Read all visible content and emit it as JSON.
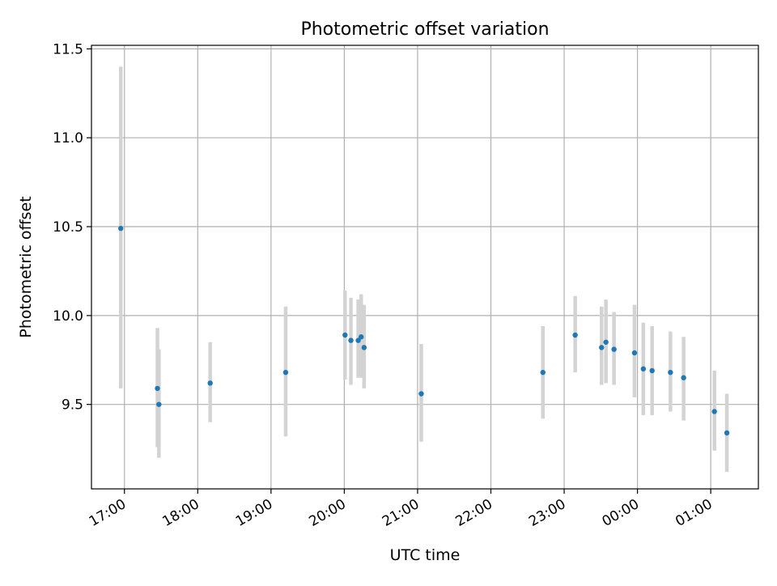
{
  "chart_data": {
    "type": "scatter",
    "title": "Photometric offset variation",
    "xlabel": "UTC time",
    "ylabel": "Photometric offset",
    "x_unit": "hours (UTC, continuing past midnight)",
    "xlim": [
      16.55,
      25.65
    ],
    "ylim": [
      9.025,
      11.52
    ],
    "x_ticks": [
      {
        "value": 17,
        "label": "17:00"
      },
      {
        "value": 18,
        "label": "18:00"
      },
      {
        "value": 19,
        "label": "19:00"
      },
      {
        "value": 20,
        "label": "20:00"
      },
      {
        "value": 21,
        "label": "21:00"
      },
      {
        "value": 22,
        "label": "22:00"
      },
      {
        "value": 23,
        "label": "23:00"
      },
      {
        "value": 24,
        "label": "00:00"
      },
      {
        "value": 25,
        "label": "01:00"
      }
    ],
    "y_ticks": [
      {
        "value": 9.5,
        "label": "9.5"
      },
      {
        "value": 10.0,
        "label": "10.0"
      },
      {
        "value": 10.5,
        "label": "10.5"
      },
      {
        "value": 11.0,
        "label": "11.0"
      },
      {
        "value": 11.5,
        "label": "11.5"
      }
    ],
    "grid": true,
    "point_color": "#1f77b4",
    "errorbar_color": "#d3d3d3",
    "points": [
      {
        "x": 16.95,
        "y": 10.49,
        "ylo": 9.59,
        "yhi": 11.4
      },
      {
        "x": 17.45,
        "y": 9.59,
        "ylo": 9.26,
        "yhi": 9.93
      },
      {
        "x": 17.47,
        "y": 9.5,
        "ylo": 9.2,
        "yhi": 9.81
      },
      {
        "x": 18.17,
        "y": 9.62,
        "ylo": 9.4,
        "yhi": 9.85
      },
      {
        "x": 19.2,
        "y": 9.68,
        "ylo": 9.32,
        "yhi": 10.05
      },
      {
        "x": 20.01,
        "y": 9.89,
        "ylo": 9.64,
        "yhi": 10.14
      },
      {
        "x": 20.09,
        "y": 9.86,
        "ylo": 9.61,
        "yhi": 10.1
      },
      {
        "x": 20.19,
        "y": 9.86,
        "ylo": 9.65,
        "yhi": 10.09
      },
      {
        "x": 20.23,
        "y": 9.88,
        "ylo": 9.65,
        "yhi": 10.12
      },
      {
        "x": 20.27,
        "y": 9.82,
        "ylo": 9.59,
        "yhi": 10.06
      },
      {
        "x": 21.05,
        "y": 9.56,
        "ylo": 9.29,
        "yhi": 9.84
      },
      {
        "x": 22.71,
        "y": 9.68,
        "ylo": 9.42,
        "yhi": 9.94
      },
      {
        "x": 23.15,
        "y": 9.89,
        "ylo": 9.68,
        "yhi": 10.11
      },
      {
        "x": 23.51,
        "y": 9.82,
        "ylo": 9.61,
        "yhi": 10.05
      },
      {
        "x": 23.57,
        "y": 9.85,
        "ylo": 9.62,
        "yhi": 10.09
      },
      {
        "x": 23.68,
        "y": 9.81,
        "ylo": 9.61,
        "yhi": 10.02
      },
      {
        "x": 23.96,
        "y": 9.79,
        "ylo": 9.54,
        "yhi": 10.06
      },
      {
        "x": 24.08,
        "y": 9.7,
        "ylo": 9.44,
        "yhi": 9.96
      },
      {
        "x": 24.2,
        "y": 9.69,
        "ylo": 9.44,
        "yhi": 9.94
      },
      {
        "x": 24.45,
        "y": 9.68,
        "ylo": 9.46,
        "yhi": 9.91
      },
      {
        "x": 24.63,
        "y": 9.65,
        "ylo": 9.41,
        "yhi": 9.88
      },
      {
        "x": 25.05,
        "y": 9.46,
        "ylo": 9.24,
        "yhi": 9.69
      },
      {
        "x": 25.22,
        "y": 9.34,
        "ylo": 9.12,
        "yhi": 9.56
      }
    ]
  }
}
